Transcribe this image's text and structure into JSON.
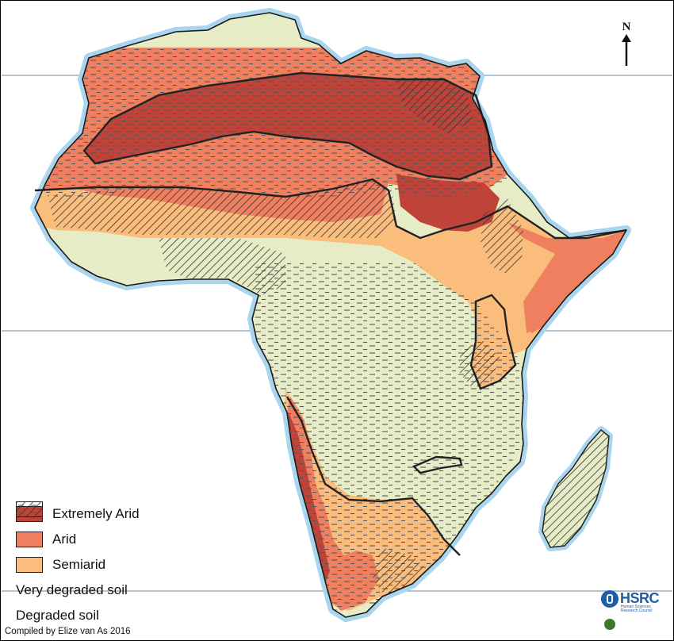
{
  "map": {
    "north_label": "N",
    "credit": "Compiled by Elize van As  2016",
    "logo_text": "HSRC",
    "logo_subtitle": "Human Sciences Research Council",
    "colors": {
      "extremely_arid": "#c0433a",
      "arid": "#f07f5f",
      "semiarid": "#fbbd7c",
      "degraded_land": "#e6ecc6",
      "coast_glow": "#a9d6ee",
      "latitude_line": "#6e8aa0"
    }
  },
  "legend": {
    "items": [
      {
        "label": "Extremely Arid",
        "fill": "#c0433a",
        "pattern": "solid"
      },
      {
        "label": "Arid",
        "fill": "#f07f5f",
        "pattern": "solid"
      },
      {
        "label": "Semiarid",
        "fill": "#fbbd7c",
        "pattern": "solid"
      },
      {
        "label": "Very degraded soil",
        "fill": "#ffffff",
        "pattern": "hatch"
      },
      {
        "label": "Degraded soil",
        "fill": "#ffffff",
        "pattern": "dash"
      }
    ]
  }
}
